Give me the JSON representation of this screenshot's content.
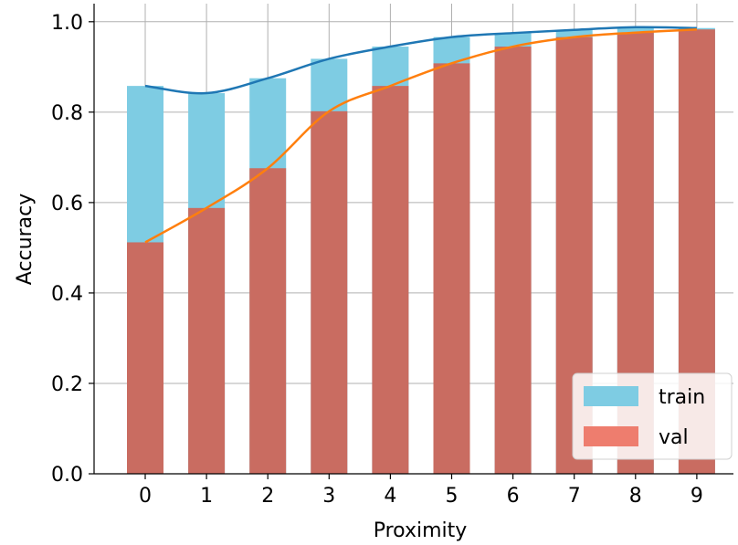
{
  "chart_data": {
    "type": "bar",
    "title": "",
    "xlabel": "Proximity",
    "ylabel": "Accuracy",
    "categories": [
      "0",
      "1",
      "2",
      "3",
      "4",
      "5",
      "6",
      "7",
      "8",
      "9"
    ],
    "ylim": [
      0,
      1.04
    ],
    "yticks": [
      "0.0",
      "0.2",
      "0.4",
      "0.6",
      "0.8",
      "1.0"
    ],
    "grid": true,
    "legend_position": "bottom-right",
    "series": [
      {
        "name": "train",
        "bar_color": "#7ecce3",
        "line_color": "#1f77b4",
        "values": [
          0.858,
          0.842,
          0.875,
          0.918,
          0.945,
          0.966,
          0.975,
          0.982,
          0.988,
          0.986
        ]
      },
      {
        "name": "val",
        "bar_color": "#c96c61",
        "legend_color": "#ee7d6e",
        "line_color": "#ff7f0e",
        "values": [
          0.512,
          0.588,
          0.676,
          0.802,
          0.858,
          0.908,
          0.945,
          0.966,
          0.976,
          0.983
        ]
      }
    ]
  }
}
